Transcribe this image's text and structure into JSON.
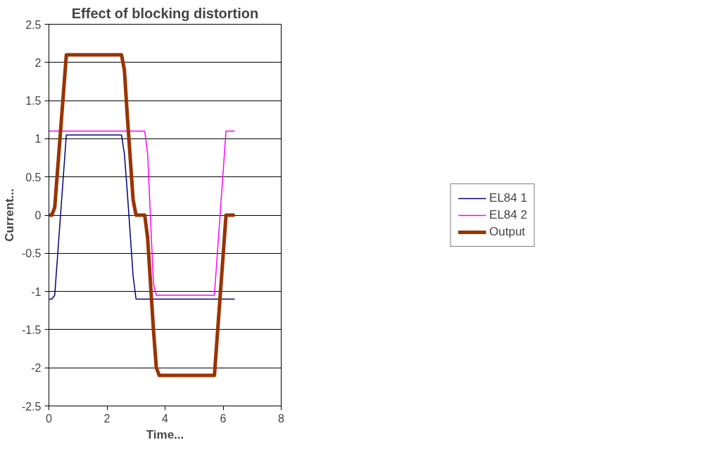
{
  "chart_data": {
    "type": "line",
    "title": "Effect of blocking distortion",
    "xlabel": "Time...",
    "ylabel": "Current...",
    "xlim": [
      0,
      8
    ],
    "xticks": [
      0,
      2,
      4,
      6,
      8
    ],
    "ylim": [
      -2.5,
      2.5
    ],
    "yticks": [
      -2.5,
      -2,
      -1.5,
      -1,
      -0.5,
      0,
      0.5,
      1,
      1.5,
      2,
      2.5
    ],
    "grid": "y",
    "legend": "right",
    "marker": "none",
    "line_style": "solid",
    "series": [
      {
        "name": "EL84 1",
        "color": "#000080",
        "x": [
          0,
          0.1,
          0.2,
          0.6,
          2.5,
          2.6,
          2.7,
          2.9,
          3.0,
          6.4
        ],
        "values": [
          -1.1,
          -1.1,
          -1.05,
          1.05,
          1.05,
          0.8,
          0.3,
          -0.8,
          -1.1,
          -1.1
        ]
      },
      {
        "name": "EL84 2",
        "color": "#ff00ff",
        "x": [
          0,
          3.3,
          3.4,
          3.6,
          3.7,
          5.7,
          6.1,
          6.4
        ],
        "values": [
          1.1,
          1.1,
          0.8,
          -0.9,
          -1.05,
          -1.05,
          1.1,
          1.1
        ]
      },
      {
        "name": "Output",
        "color": "#993300",
        "x": [
          0,
          0.1,
          0.2,
          0.6,
          2.5,
          2.6,
          2.7,
          2.9,
          3.0,
          3.3,
          3.4,
          3.6,
          3.7,
          3.8,
          5.7,
          6.1,
          6.4
        ],
        "values": [
          0,
          0,
          0.1,
          2.1,
          2.1,
          1.9,
          1.3,
          0.2,
          0,
          0,
          -0.3,
          -1.5,
          -2.0,
          -2.1,
          -2.1,
          0,
          0
        ]
      }
    ]
  }
}
